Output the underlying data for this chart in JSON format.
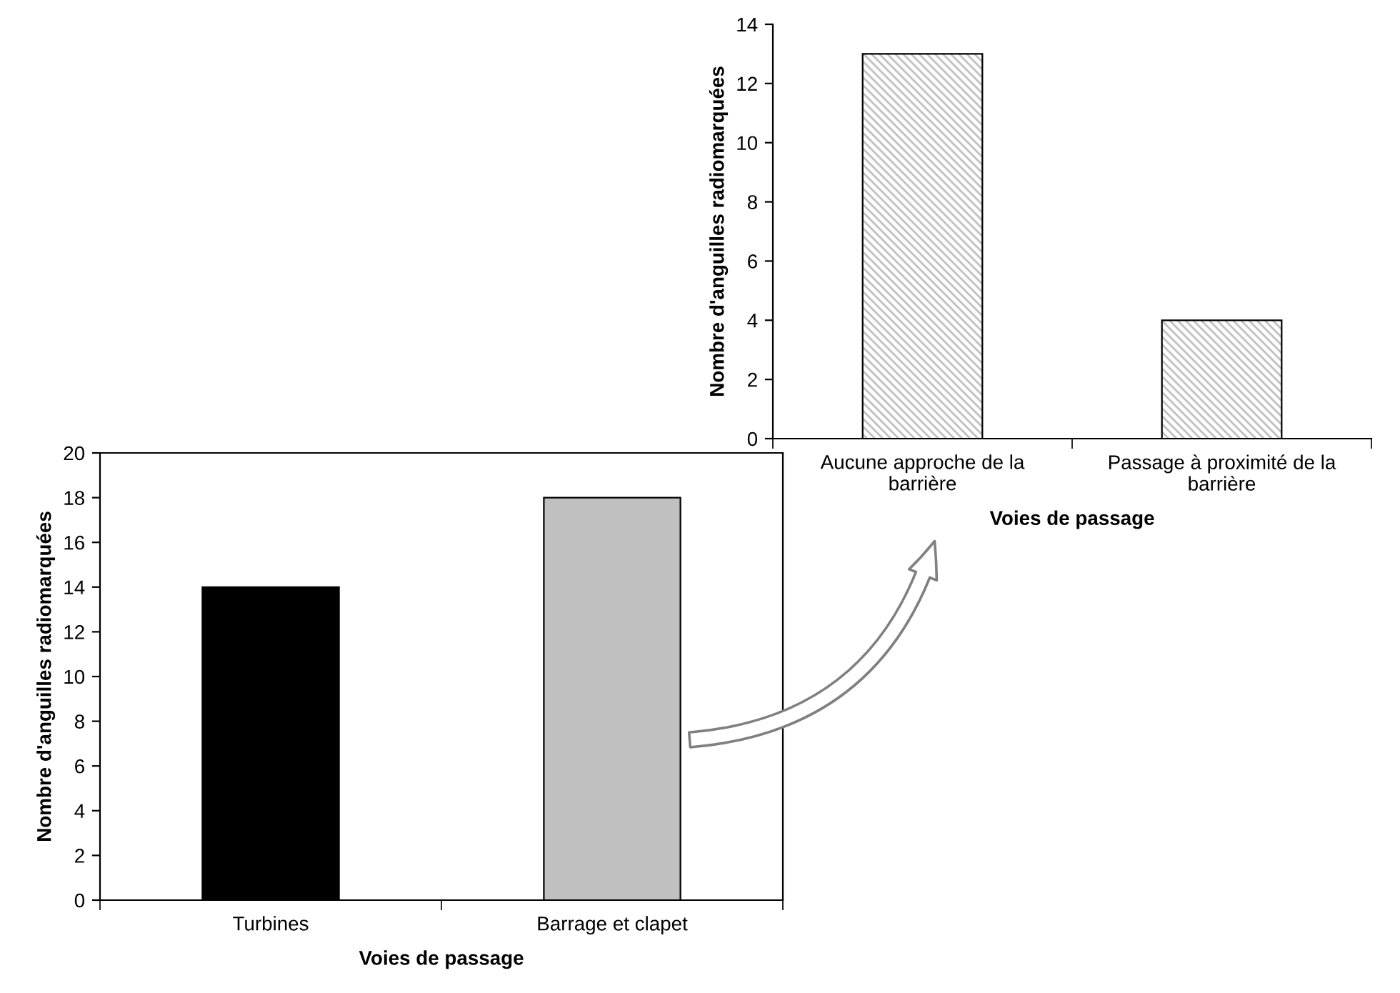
{
  "chart_data": [
    {
      "type": "bar",
      "categories": [
        "Aucune approche de la\nbarrière",
        "Passage à proximité de la\nbarrière"
      ],
      "values": [
        13,
        4
      ],
      "colors": [
        "#bfbfbf",
        "#bfbfbf"
      ],
      "xlabel": "Voies de passage",
      "ylabel": "Nombre d'anguilles radiomarquées",
      "ylim": [
        0,
        14
      ],
      "yticks": [
        0,
        2,
        4,
        6,
        8,
        10,
        12,
        14
      ],
      "grid": false,
      "legend": false
    },
    {
      "type": "bar",
      "categories": [
        "Turbines",
        "Barrage et clapet"
      ],
      "values": [
        14,
        18
      ],
      "colors": [
        "#000000",
        "#c0c0c0"
      ],
      "xlabel": "Voies de passage",
      "ylabel": "Nombre d'anguilles radiomarquées",
      "ylim": [
        0,
        20
      ],
      "yticks": [
        0,
        2,
        4,
        6,
        8,
        10,
        12,
        14,
        16,
        18,
        20
      ],
      "grid": false,
      "legend": false
    }
  ]
}
